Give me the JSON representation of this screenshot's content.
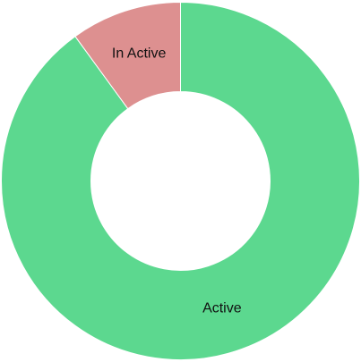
{
  "chart_data": {
    "type": "pie",
    "variant": "doughnut",
    "categories": [
      "Active",
      "In Active"
    ],
    "values": [
      90,
      10
    ],
    "colors": [
      "#5cd88f",
      "#dd9090"
    ],
    "legend": "none",
    "title": "",
    "slice_labels": [
      "Active",
      "In Active"
    ]
  }
}
